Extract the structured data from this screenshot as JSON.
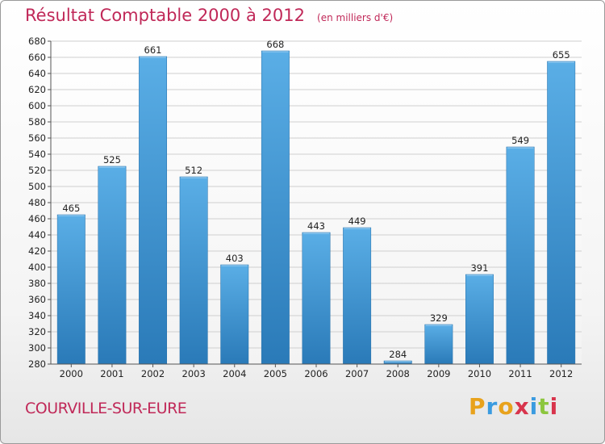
{
  "header": {
    "title": "Résultat Comptable 2000 à 2012",
    "unit": "(en milliers d'€)"
  },
  "footer": {
    "commune": "COURVILLE-SUR-EURE",
    "brand": "Proxiti",
    "brand_letters": [
      {
        "ch": "P",
        "color": "#e8a21c"
      },
      {
        "ch": "r",
        "color": "#3a9be0"
      },
      {
        "ch": "o",
        "color": "#e8a21c"
      },
      {
        "ch": "x",
        "color": "#d8344c"
      },
      {
        "ch": "i",
        "color": "#3a9be0"
      },
      {
        "ch": "t",
        "color": "#8cc63e"
      },
      {
        "ch": "i",
        "color": "#d8344c"
      }
    ]
  },
  "chart_data": {
    "type": "bar",
    "title": "Résultat Comptable 2000 à 2012",
    "subtitle": "(en milliers d'€)",
    "xlabel": "",
    "ylabel": "",
    "categories": [
      "2000",
      "2001",
      "2002",
      "2003",
      "2004",
      "2005",
      "2006",
      "2007",
      "2008",
      "2009",
      "2010",
      "2011",
      "2012"
    ],
    "values": [
      465,
      525,
      661,
      512,
      403,
      668,
      443,
      449,
      284,
      329,
      391,
      549,
      655
    ],
    "ylim": [
      280,
      680
    ],
    "ytick_step": 20,
    "grid": true,
    "bar_color_top": "#5aaee6",
    "bar_color_bottom": "#2a7ab8",
    "grid_color": "#cfcfcf",
    "axis_color": "#555555"
  }
}
